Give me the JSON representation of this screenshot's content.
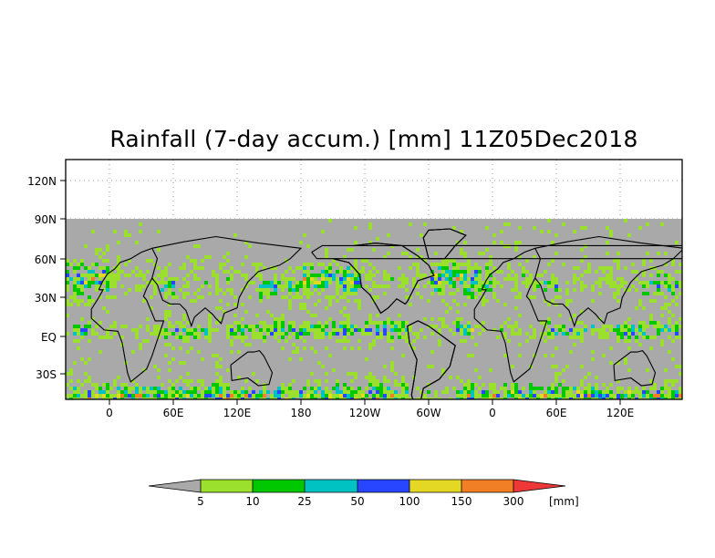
{
  "title": "Rainfall (7-day accum.) [mm] 11Z05Dec2018",
  "map": {
    "x_ticks": [
      "0",
      "60E",
      "120E",
      "180",
      "120W",
      "60W",
      "0",
      "60E",
      "120E"
    ],
    "y_ticks": [
      "120N",
      "90N",
      "60N",
      "30N",
      "EQ",
      "30S"
    ],
    "no_data_color": "#a9a9a9",
    "coast_color": "#000000"
  },
  "colorbar": {
    "ticks": [
      "5",
      "10",
      "25",
      "50",
      "100",
      "150",
      "300"
    ],
    "unit": "[mm]",
    "colors": [
      "#a9a9a9",
      "#9be02c",
      "#00c800",
      "#00c2c2",
      "#2846ff",
      "#e5d825",
      "#f07f26",
      "#ee3838"
    ]
  }
}
